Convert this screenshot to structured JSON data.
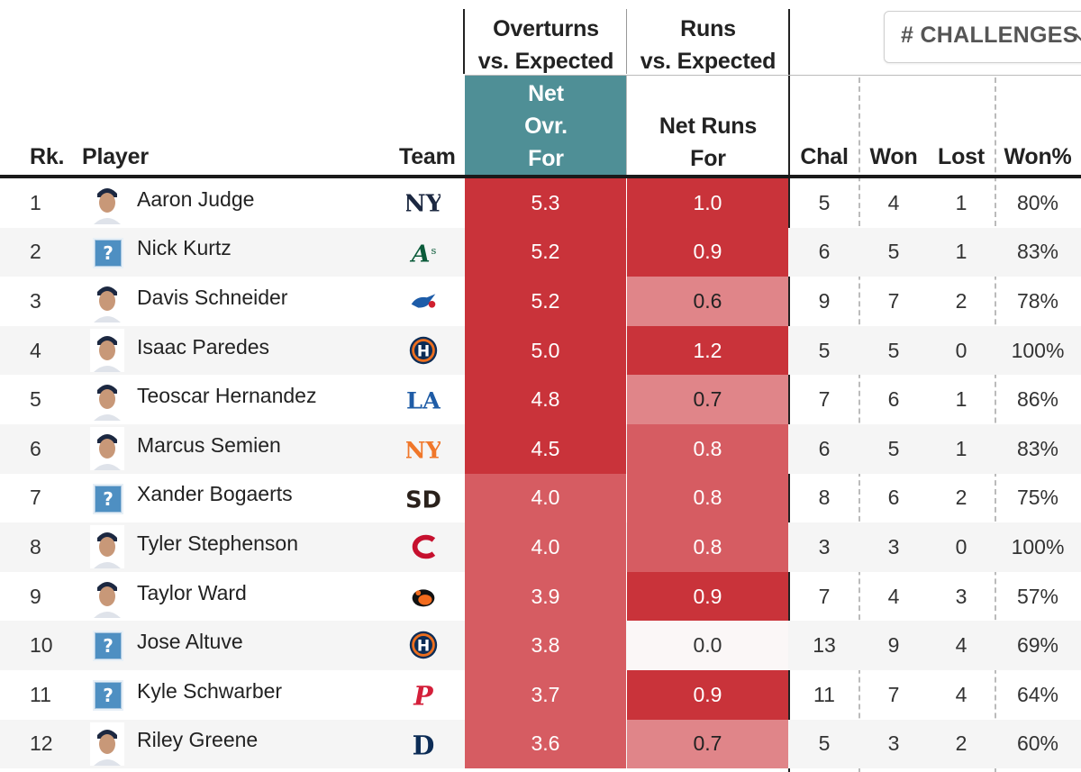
{
  "header": {
    "group_overturns": [
      "Overturns",
      "vs. Expected"
    ],
    "group_runs": [
      "Runs",
      "vs. Expected"
    ],
    "col_rank": "Rk.",
    "col_player": "Player",
    "col_team": "Team",
    "col_net_ovr": [
      "Net",
      "Ovr.",
      "For"
    ],
    "col_net_runs": [
      "Net Runs",
      "For"
    ],
    "col_chal": "Chal",
    "col_won": "Won",
    "col_lost": "Lost",
    "col_wonpct": "Won%"
  },
  "dropdown": {
    "label": "# CHALLENGES"
  },
  "colors": {
    "net_ovr_header_bg": "#4f8f96",
    "stripe": "#f5f5f5",
    "dark_red": "#c9333a",
    "mid_red": "#d65c62",
    "light_red": "#e08589",
    "white_cell": "#fbf7f7"
  },
  "rows": [
    {
      "rank": "1",
      "player": "Aaron Judge",
      "team": "NYY",
      "team_icon": "yankees-logo-icon",
      "photo": true,
      "net_ovr": "5.3",
      "net_runs": "1.0",
      "chal": "5",
      "won": "4",
      "lost": "1",
      "won_pct": "80%"
    },
    {
      "rank": "2",
      "player": "Nick Kurtz",
      "team": "ATH",
      "team_icon": "athletics-logo-icon",
      "photo": false,
      "net_ovr": "5.2",
      "net_runs": "0.9",
      "chal": "6",
      "won": "5",
      "lost": "1",
      "won_pct": "83%"
    },
    {
      "rank": "3",
      "player": "Davis Schneider",
      "team": "TOR",
      "team_icon": "bluejays-logo-icon",
      "photo": true,
      "net_ovr": "5.2",
      "net_runs": "0.6",
      "chal": "9",
      "won": "7",
      "lost": "2",
      "won_pct": "78%"
    },
    {
      "rank": "4",
      "player": "Isaac Paredes",
      "team": "HOU",
      "team_icon": "astros-logo-icon",
      "photo": true,
      "net_ovr": "5.0",
      "net_runs": "1.2",
      "chal": "5",
      "won": "5",
      "lost": "0",
      "won_pct": "100%"
    },
    {
      "rank": "5",
      "player": "Teoscar Hernandez",
      "team": "LAD",
      "team_icon": "dodgers-logo-icon",
      "photo": true,
      "net_ovr": "4.8",
      "net_runs": "0.7",
      "chal": "7",
      "won": "6",
      "lost": "1",
      "won_pct": "86%"
    },
    {
      "rank": "6",
      "player": "Marcus Semien",
      "team": "NYM",
      "team_icon": "mets-logo-icon",
      "photo": true,
      "net_ovr": "4.5",
      "net_runs": "0.8",
      "chal": "6",
      "won": "5",
      "lost": "1",
      "won_pct": "83%"
    },
    {
      "rank": "7",
      "player": "Xander Bogaerts",
      "team": "SD",
      "team_icon": "padres-logo-icon",
      "photo": false,
      "net_ovr": "4.0",
      "net_runs": "0.8",
      "chal": "8",
      "won": "6",
      "lost": "2",
      "won_pct": "75%"
    },
    {
      "rank": "8",
      "player": "Tyler Stephenson",
      "team": "CIN",
      "team_icon": "reds-logo-icon",
      "photo": true,
      "net_ovr": "4.0",
      "net_runs": "0.8",
      "chal": "3",
      "won": "3",
      "lost": "0",
      "won_pct": "100%"
    },
    {
      "rank": "9",
      "player": "Taylor Ward",
      "team": "BAL",
      "team_icon": "orioles-logo-icon",
      "photo": true,
      "net_ovr": "3.9",
      "net_runs": "0.9",
      "chal": "7",
      "won": "4",
      "lost": "3",
      "won_pct": "57%"
    },
    {
      "rank": "10",
      "player": "Jose Altuve",
      "team": "HOU",
      "team_icon": "astros-logo-icon",
      "photo": false,
      "net_ovr": "3.8",
      "net_runs": "0.0",
      "chal": "13",
      "won": "9",
      "lost": "4",
      "won_pct": "69%"
    },
    {
      "rank": "11",
      "player": "Kyle Schwarber",
      "team": "PHI",
      "team_icon": "phillies-logo-icon",
      "photo": false,
      "net_ovr": "3.7",
      "net_runs": "0.9",
      "chal": "11",
      "won": "7",
      "lost": "4",
      "won_pct": "64%"
    },
    {
      "rank": "12",
      "player": "Riley Greene",
      "team": "DET",
      "team_icon": "tigers-logo-icon",
      "photo": true,
      "net_ovr": "3.6",
      "net_runs": "0.7",
      "chal": "5",
      "won": "3",
      "lost": "2",
      "won_pct": "60%"
    }
  ],
  "placeholder_glyph": "?"
}
